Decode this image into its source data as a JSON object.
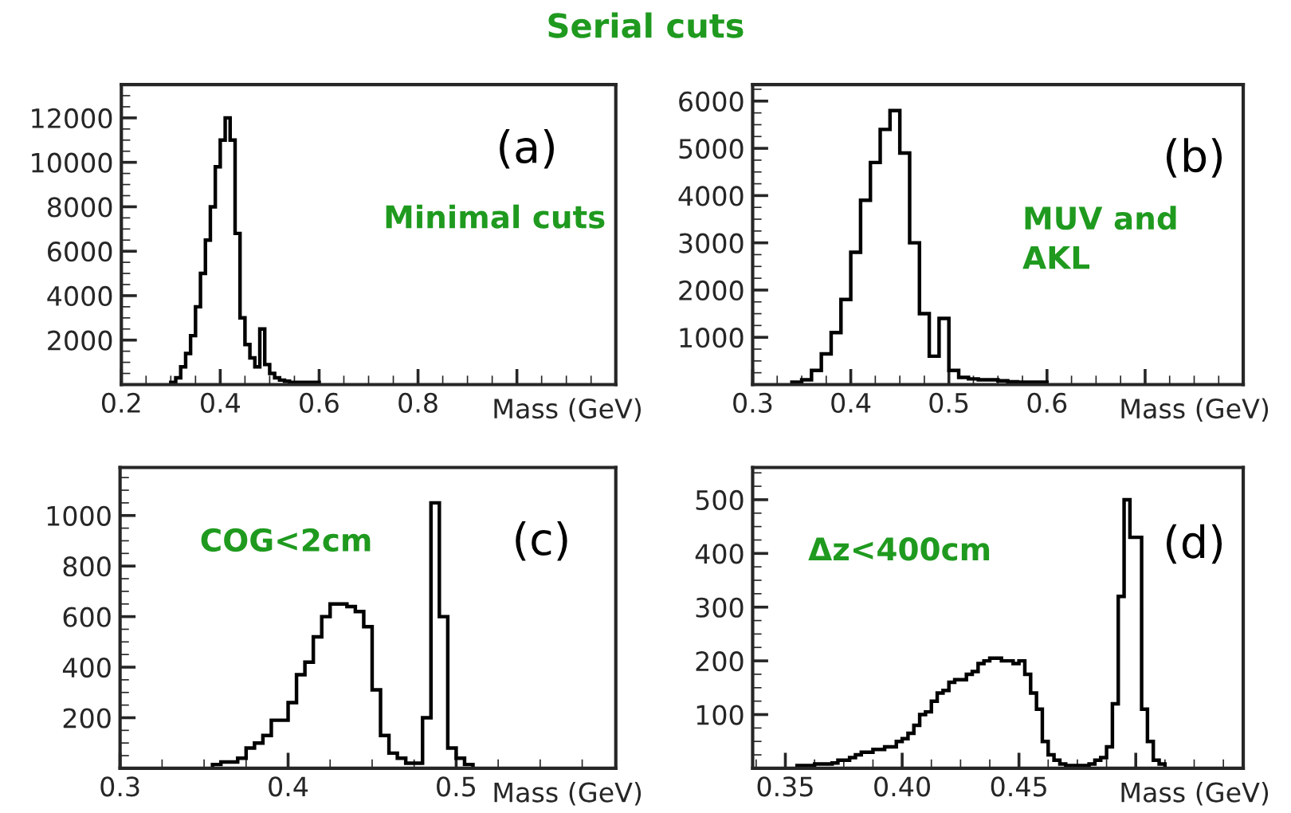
{
  "chart_data": [
    {
      "type": "histogram",
      "title": "Serial cuts",
      "xlabel": "Mass (GeV)",
      "annotations": [
        "(a)",
        "Minimal cuts"
      ],
      "bins": [
        0.3,
        0.31,
        0.32,
        0.33,
        0.34,
        0.35,
        0.36,
        0.37,
        0.38,
        0.39,
        0.4,
        0.41,
        0.42,
        0.43,
        0.44,
        0.45,
        0.46,
        0.47,
        0.48,
        0.49,
        0.5,
        0.51,
        0.52,
        0.53,
        0.54,
        0.55,
        0.56,
        0.57,
        0.58,
        0.59,
        0.6
      ],
      "values": [
        100,
        300,
        800,
        1400,
        2200,
        3500,
        5000,
        6500,
        8000,
        9800,
        11000,
        12000,
        11000,
        6800,
        3000,
        1800,
        1200,
        800,
        2500,
        900,
        500,
        300,
        200,
        150,
        100,
        100,
        100,
        100,
        100,
        100
      ],
      "color": "#000000",
      "xlim": [
        0.2,
        1.2
      ],
      "xticks": [
        0.2,
        0.4,
        0.6,
        0.8,
        {
          "value": 1.0,
          "label": null
        }
      ],
      "ylim": [
        0,
        13500
      ],
      "yticks": [
        2000,
        4000,
        6000,
        8000,
        10000,
        12000
      ],
      "grid": false,
      "legend": false
    },
    {
      "type": "histogram",
      "xlabel": "Mass (GeV)",
      "annotations": [
        "(b)",
        "MUV and\nAKL"
      ],
      "bins": [
        0.34,
        0.35,
        0.36,
        0.37,
        0.38,
        0.39,
        0.4,
        0.41,
        0.42,
        0.43,
        0.44,
        0.45,
        0.46,
        0.47,
        0.48,
        0.49,
        0.5,
        0.51,
        0.52,
        0.53,
        0.54,
        0.55,
        0.56,
        0.57,
        0.58,
        0.59,
        0.6
      ],
      "values": [
        50,
        100,
        300,
        650,
        1100,
        1800,
        2800,
        3900,
        4700,
        5400,
        5800,
        4900,
        3000,
        1500,
        600,
        1400,
        300,
        150,
        120,
        100,
        100,
        80,
        60,
        50,
        50,
        50
      ],
      "color": "#000000",
      "xlim": [
        0.3,
        0.8
      ],
      "xticks": [
        0.3,
        0.4,
        0.5,
        0.6,
        {
          "value": 0.7,
          "label": null
        }
      ],
      "ylim": [
        0,
        6350
      ],
      "yticks": [
        1000,
        2000,
        3000,
        4000,
        5000,
        6000
      ],
      "grid": false,
      "legend": false
    },
    {
      "type": "histogram",
      "xlabel": "Mass (GeV)",
      "annotations": [
        "(c)",
        "COG<2cm"
      ],
      "bins": [
        0.355,
        0.36,
        0.365,
        0.37,
        0.375,
        0.38,
        0.385,
        0.39,
        0.395,
        0.4,
        0.405,
        0.41,
        0.415,
        0.42,
        0.425,
        0.43,
        0.435,
        0.44,
        0.445,
        0.45,
        0.455,
        0.46,
        0.465,
        0.47,
        0.475,
        0.48,
        0.485,
        0.49,
        0.495,
        0.5,
        0.505,
        0.51
      ],
      "values": [
        15,
        25,
        25,
        40,
        80,
        100,
        130,
        190,
        190,
        260,
        370,
        420,
        520,
        600,
        650,
        650,
        640,
        620,
        560,
        310,
        130,
        60,
        40,
        20,
        20,
        200,
        1050,
        600,
        80,
        40,
        15
      ],
      "color": "#000000",
      "xlim": [
        0.3,
        0.595
      ],
      "xticks": [
        0.3,
        0.4,
        0.5
      ],
      "ylim": [
        0,
        1190
      ],
      "yticks": [
        200,
        400,
        600,
        800,
        1000
      ],
      "grid": false,
      "legend": false
    },
    {
      "type": "histogram",
      "xlabel": "Mass (GeV)",
      "annotations": [
        "(d)",
        "Δz<400cm"
      ],
      "bins": [
        0.355,
        0.3575,
        0.36,
        0.3625,
        0.365,
        0.3675,
        0.37,
        0.3725,
        0.375,
        0.3775,
        0.38,
        0.3825,
        0.385,
        0.3875,
        0.39,
        0.3925,
        0.395,
        0.3975,
        0.4,
        0.4025,
        0.405,
        0.4075,
        0.41,
        0.4125,
        0.415,
        0.4175,
        0.42,
        0.4225,
        0.425,
        0.4275,
        0.43,
        0.4325,
        0.435,
        0.4375,
        0.44,
        0.4425,
        0.445,
        0.4475,
        0.45,
        0.4525,
        0.455,
        0.4575,
        0.46,
        0.4625,
        0.465,
        0.4675,
        0.47,
        0.4725,
        0.475,
        0.4775,
        0.48,
        0.4825,
        0.485,
        0.4875,
        0.49,
        0.4925,
        0.495,
        0.4975,
        0.5,
        0.5025,
        0.505,
        0.5075,
        0.51,
        0.5125
      ],
      "values": [
        5,
        5,
        5,
        8,
        8,
        8,
        10,
        15,
        15,
        20,
        25,
        30,
        30,
        35,
        35,
        40,
        40,
        50,
        55,
        65,
        80,
        100,
        105,
        125,
        140,
        145,
        160,
        165,
        165,
        175,
        180,
        195,
        200,
        205,
        205,
        200,
        200,
        195,
        200,
        175,
        140,
        110,
        50,
        25,
        15,
        8,
        5,
        5,
        5,
        5,
        8,
        15,
        20,
        40,
        120,
        320,
        500,
        430,
        430,
        110,
        50,
        15,
        8
      ],
      "color": "#000000",
      "xlim": [
        0.336,
        0.546
      ],
      "xticks": [
        {
          "value": 0.35,
          "label": "0.35"
        },
        {
          "value": 0.4,
          "label": "0.40"
        },
        {
          "value": 0.45,
          "label": "0.45"
        },
        {
          "value": 0.5,
          "label": null
        }
      ],
      "ylim": [
        0,
        560
      ],
      "yticks": [
        100,
        200,
        300,
        400,
        500
      ],
      "grid": false,
      "legend": false
    }
  ]
}
